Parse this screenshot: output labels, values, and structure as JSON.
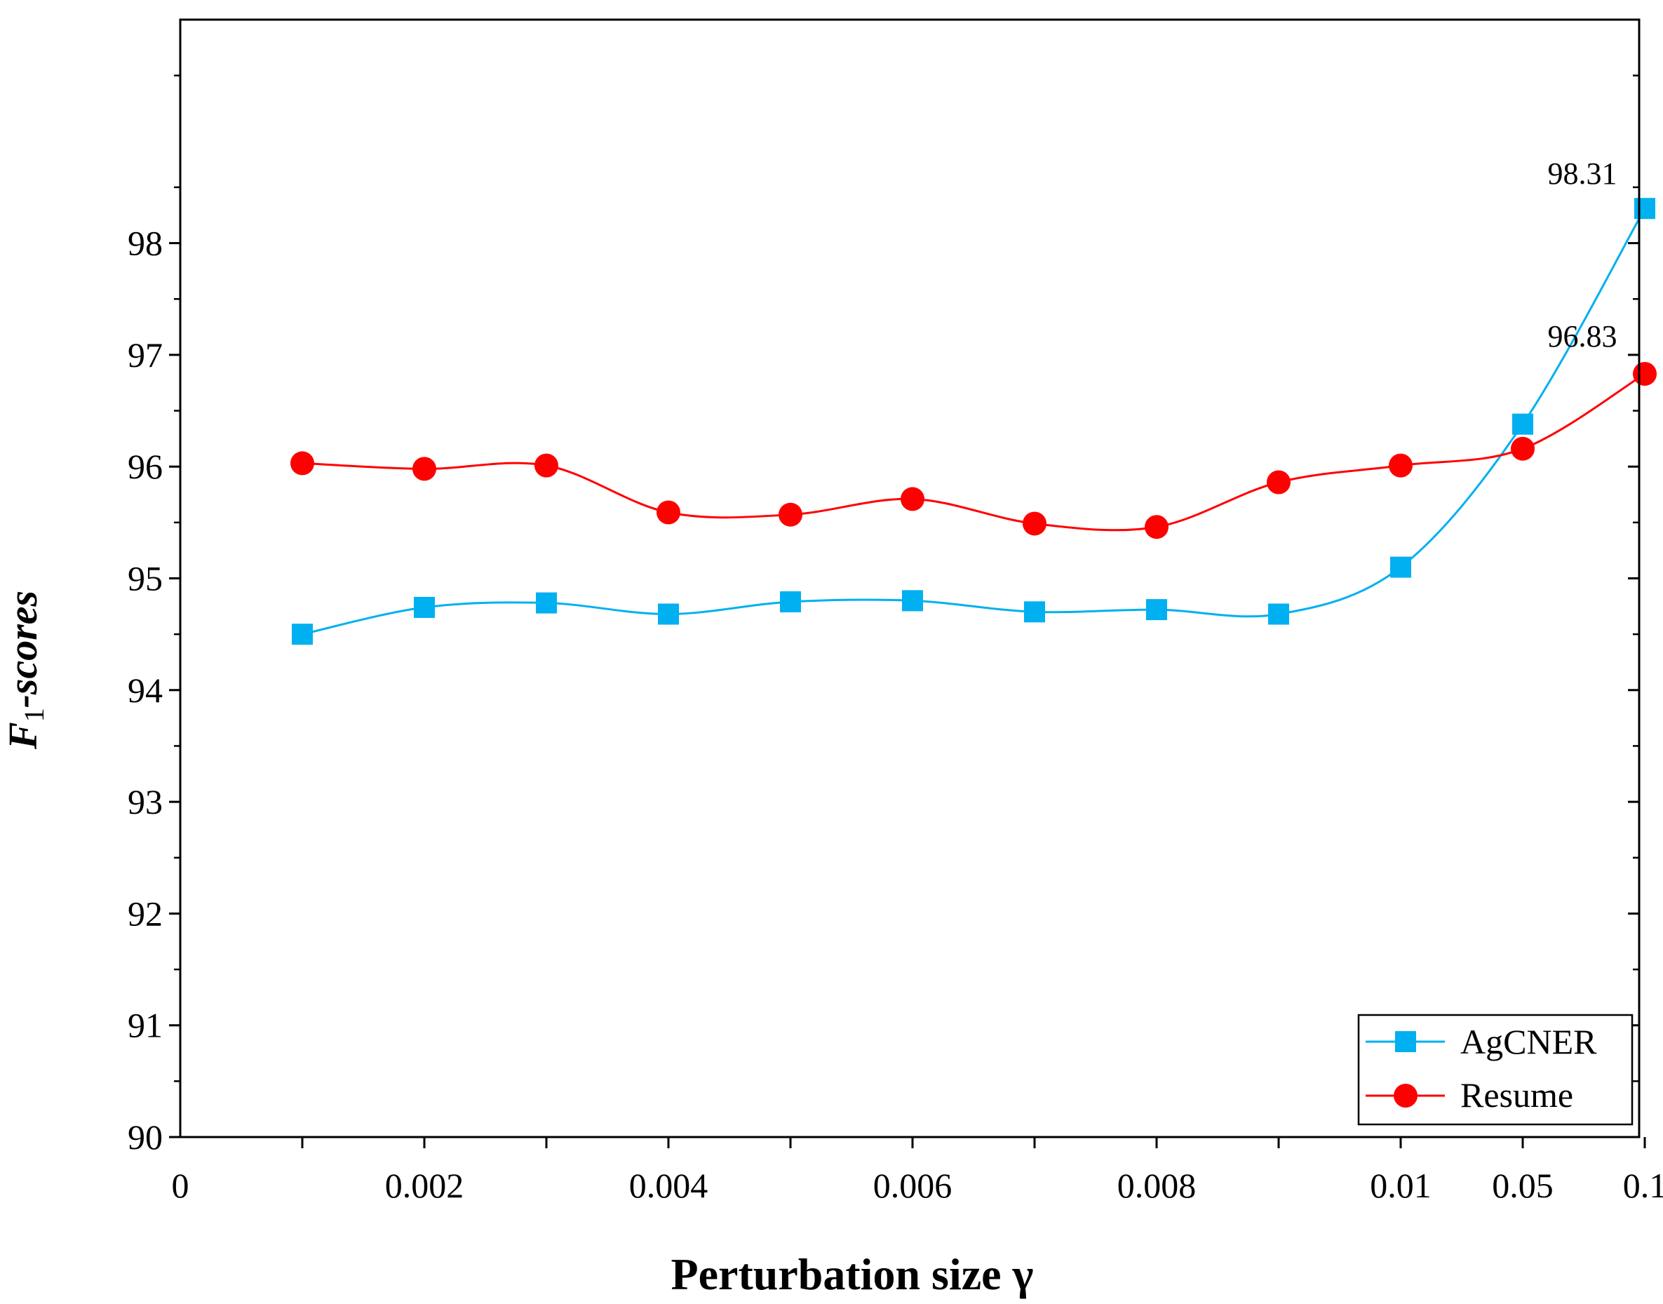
{
  "chart_data": {
    "type": "line",
    "title": "",
    "xlabel": "Perturbation size γ",
    "ylabel_main": "F",
    "ylabel_sub": "1",
    "ylabel_rest": "-scores",
    "x_tick_labels": [
      "0",
      "0.002",
      "0.004",
      "0.006",
      "0.008",
      "0.01",
      "0.05",
      "0.1"
    ],
    "categories": [
      "0.001",
      "0.002",
      "0.003",
      "0.004",
      "0.005",
      "0.006",
      "0.007",
      "0.008",
      "0.009",
      "0.01",
      "0.05",
      "0.1"
    ],
    "ylim": [
      90,
      100
    ],
    "y_tick_labels": [
      "90",
      "91",
      "92",
      "93",
      "94",
      "95",
      "96",
      "97",
      "98"
    ],
    "legend_position": "bottom-right",
    "series": [
      {
        "name": "AgCNER",
        "color": "#00B0F0",
        "marker": "square",
        "values": [
          94.5,
          94.74,
          94.78,
          94.68,
          94.79,
          94.8,
          94.7,
          94.72,
          94.68,
          95.1,
          96.38,
          98.31
        ],
        "end_label": "98.31"
      },
      {
        "name": "Resume",
        "color": "#FF0000",
        "marker": "circle",
        "values": [
          96.03,
          95.98,
          96.01,
          95.59,
          95.57,
          95.71,
          95.49,
          95.46,
          95.86,
          96.01,
          96.16,
          96.83
        ],
        "end_label": "96.83"
      }
    ]
  }
}
